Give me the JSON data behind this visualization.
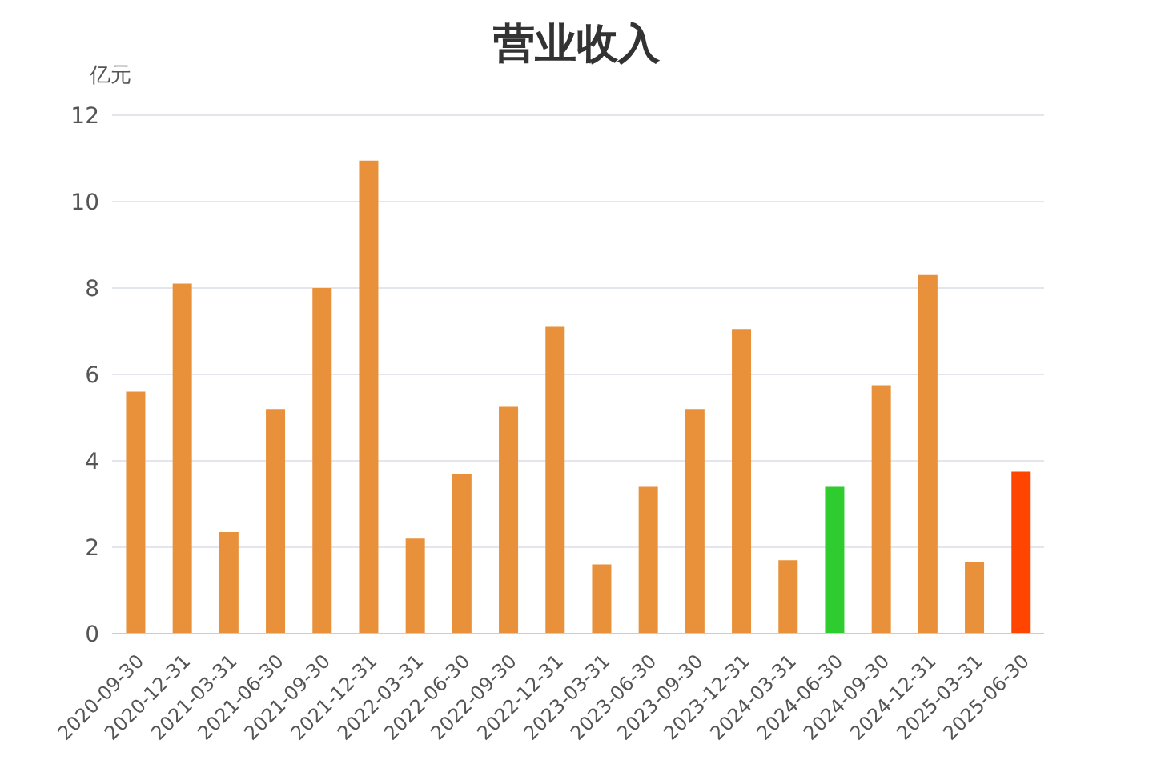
{
  "chart_data": {
    "type": "bar",
    "title": "营业收入",
    "ylabel": "亿元",
    "categories": [
      "2020-09-30",
      "2020-12-31",
      "2021-03-31",
      "2021-06-30",
      "2021-09-30",
      "2021-12-31",
      "2022-03-31",
      "2022-06-30",
      "2022-09-30",
      "2022-12-31",
      "2023-03-31",
      "2023-06-30",
      "2023-09-30",
      "2023-12-31",
      "2024-03-31",
      "2024-06-30",
      "2024-09-30",
      "2024-12-31",
      "2025-03-31",
      "2025-06-30"
    ],
    "values": [
      5.6,
      8.1,
      2.35,
      5.2,
      8.0,
      10.95,
      2.2,
      3.7,
      5.25,
      7.1,
      1.6,
      3.4,
      5.2,
      7.05,
      1.7,
      3.4,
      5.75,
      8.3,
      1.65,
      3.75
    ],
    "colors": [
      "#e8913a",
      "#e8913a",
      "#e8913a",
      "#e8913a",
      "#e8913a",
      "#e8913a",
      "#e8913a",
      "#e8913a",
      "#e8913a",
      "#e8913a",
      "#e8913a",
      "#e8913a",
      "#e8913a",
      "#e8913a",
      "#e8913a",
      "#2ecc2e",
      "#e8913a",
      "#e8913a",
      "#e8913a",
      "#ff4500"
    ],
    "ylim": [
      0,
      12
    ],
    "yticks": [
      0,
      2,
      4,
      6,
      8,
      10,
      12
    ],
    "grid": "y"
  }
}
